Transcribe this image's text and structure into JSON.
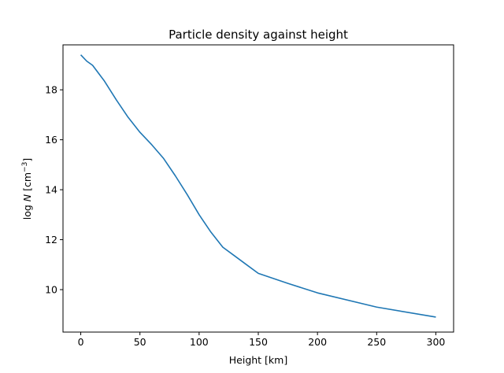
{
  "chart_data": {
    "type": "line",
    "title": "Particle density against height",
    "xlabel": "Height [km]",
    "ylabel": {
      "prefix": "log ",
      "variable": "N",
      "unit_open": " [cm",
      "unit_exp": "−3",
      "unit_close": "]"
    },
    "xlim": [
      -15,
      315
    ],
    "ylim": [
      8.3,
      19.8
    ],
    "xticks": [
      0,
      50,
      100,
      150,
      200,
      250,
      300
    ],
    "yticks": [
      10,
      12,
      14,
      16,
      18
    ],
    "grid": false,
    "series": [
      {
        "color": "#1f77b4",
        "x": [
          0,
          5,
          10,
          20,
          30,
          40,
          50,
          60,
          70,
          80,
          90,
          100,
          110,
          120,
          130,
          140,
          150,
          175,
          200,
          250,
          300
        ],
        "y": [
          19.4,
          19.15,
          18.98,
          18.35,
          17.6,
          16.9,
          16.3,
          15.8,
          15.25,
          14.55,
          13.8,
          13.0,
          12.3,
          11.7,
          11.35,
          11.0,
          10.65,
          10.25,
          9.87,
          9.3,
          8.9
        ]
      }
    ]
  }
}
